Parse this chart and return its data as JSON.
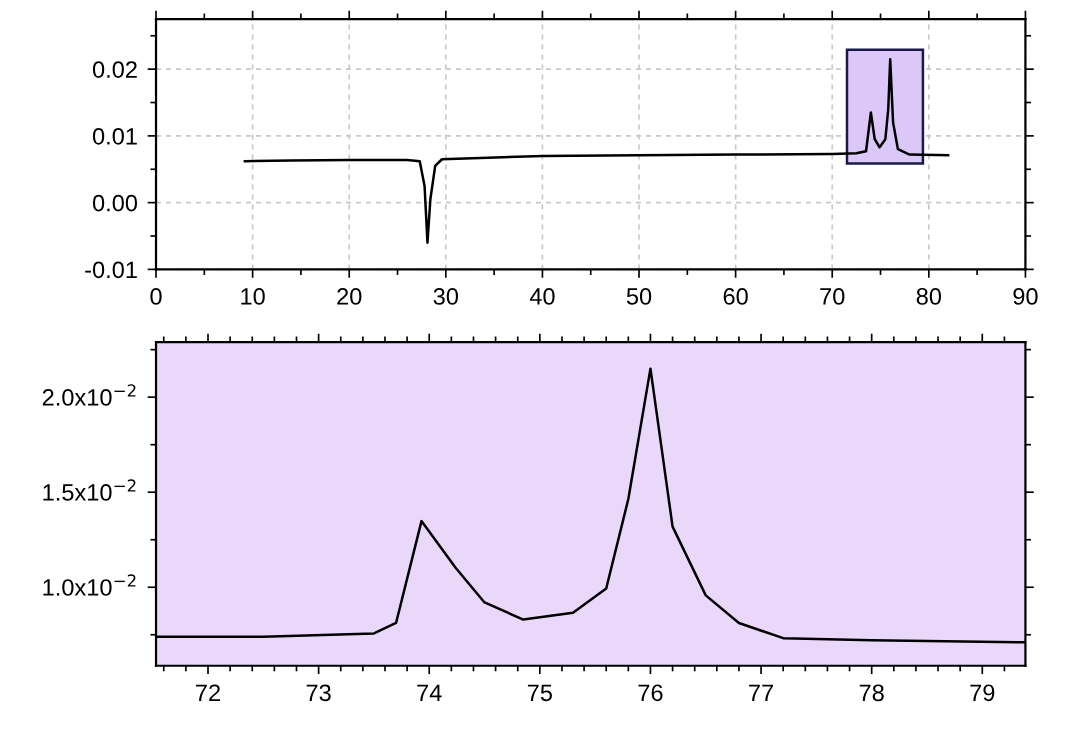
{
  "chart_data": [
    {
      "type": "line",
      "x": [
        9.2,
        14,
        20,
        26,
        27.3,
        27.8,
        28.1,
        28.4,
        28.9,
        29.6,
        32,
        40,
        50,
        60,
        70,
        72.5,
        73.5,
        74.0,
        74.4,
        74.9,
        75.5,
        75.8,
        76.0,
        76.3,
        76.8,
        78,
        82
      ],
      "series": [
        {
          "color": "#000000",
          "values": [
            0.0062,
            0.0063,
            0.0064,
            0.0064,
            0.0062,
            0.0025,
            -0.006,
            0.0005,
            0.0055,
            0.0065,
            0.0066,
            0.007,
            0.0071,
            0.0072,
            0.0073,
            0.0074,
            0.0077,
            0.0135,
            0.0095,
            0.0083,
            0.0095,
            0.014,
            0.0215,
            0.012,
            0.008,
            0.0072,
            0.0071
          ]
        }
      ],
      "xlim": [
        0,
        90
      ],
      "ylim": [
        -0.01,
        0.0275
      ],
      "xticks": [
        0,
        10,
        20,
        30,
        40,
        50,
        60,
        70,
        80,
        90
      ],
      "yticks": [
        {
          "value": -0.01,
          "label": "-0.01"
        },
        {
          "value": 0,
          "label": "0.00"
        },
        {
          "value": 0.01,
          "label": "0.01"
        },
        {
          "value": 0.02,
          "label": "0.02"
        }
      ],
      "bands": [
        {
          "axis": "x",
          "from": 71.53,
          "to": 79.39,
          "color": "#dcc8f8"
        }
      ],
      "grid": true,
      "line_style": "solid",
      "marker": "none"
    },
    {
      "type": "line",
      "x": [
        71.53,
        72.5,
        73.5,
        73.7,
        73.93,
        74.24,
        74.5,
        74.85,
        75.3,
        75.6,
        75.8,
        76.0,
        76.2,
        76.5,
        76.8,
        77.2,
        78,
        79.39
      ],
      "series": [
        {
          "color": "#000000",
          "values": [
            0.00739,
            0.0074,
            0.00757,
            0.00812,
            0.01348,
            0.01101,
            0.0092,
            0.0083,
            0.00866,
            0.00993,
            0.01464,
            0.0215,
            0.01319,
            0.00957,
            0.00812,
            0.00732,
            0.00721,
            0.0071
          ]
        }
      ],
      "xlim": [
        71.53,
        79.39
      ],
      "ylim": [
        0.00587,
        0.0229
      ],
      "xticks": [
        72,
        73,
        74,
        75,
        76,
        77,
        78,
        79
      ],
      "yticks": [
        {
          "value": 0.01,
          "label": "1.0x10$^{−2}$"
        },
        {
          "value": 0.015,
          "label": "1.5x10$^{−2}$"
        },
        {
          "value": 0.02,
          "label": "2.0x10$^{−2}$"
        }
      ],
      "bands": [
        {
          "axis": "x",
          "from": 71.53,
          "to": 79.39,
          "color": "#ead8fb"
        }
      ],
      "grid": false,
      "line_style": "solid",
      "marker": "none"
    }
  ]
}
